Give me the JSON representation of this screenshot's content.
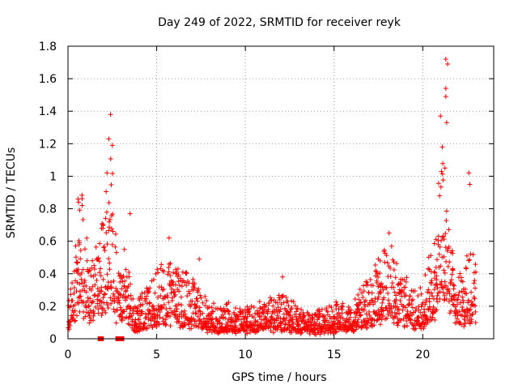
{
  "chart_data": {
    "type": "scatter",
    "title": "Day 249 of 2022, SRMTID for receiver reyk",
    "xlabel": "GPS time / hours",
    "ylabel": "SRMTID / TECUs",
    "xlim": [
      0,
      24
    ],
    "ylim": [
      0,
      1.8
    ],
    "x_ticks": [
      0,
      5,
      10,
      15,
      20
    ],
    "x_tick_labels": [
      "0",
      "5",
      "10",
      "15",
      "20"
    ],
    "y_ticks": [
      0,
      0.2,
      0.4,
      0.6,
      0.8,
      1.0,
      1.2,
      1.4,
      1.6,
      1.8
    ],
    "y_tick_labels": [
      "0",
      "0.2",
      "0.4",
      "0.6",
      "0.8",
      "1",
      "1.2",
      "1.4",
      "1.6",
      "1.8"
    ],
    "grid": true,
    "marker": "+",
    "series": [
      {
        "name": "SRMTID",
        "color": "#ff0000",
        "envelope": [
          [
            0.0,
            0.12
          ],
          [
            0.3,
            0.28
          ],
          [
            0.5,
            0.45
          ],
          [
            0.8,
            0.55
          ],
          [
            1.0,
            0.4
          ],
          [
            1.3,
            0.3
          ],
          [
            1.6,
            0.35
          ],
          [
            1.9,
            0.45
          ],
          [
            2.2,
            0.6
          ],
          [
            2.4,
            0.7
          ],
          [
            2.6,
            0.45
          ],
          [
            2.9,
            0.25
          ],
          [
            3.2,
            0.35
          ],
          [
            3.5,
            0.25
          ],
          [
            3.8,
            0.12
          ],
          [
            4.2,
            0.18
          ],
          [
            4.6,
            0.2
          ],
          [
            5.0,
            0.26
          ],
          [
            5.5,
            0.28
          ],
          [
            6.0,
            0.27
          ],
          [
            6.5,
            0.25
          ],
          [
            7.0,
            0.22
          ],
          [
            7.5,
            0.17
          ],
          [
            8.0,
            0.12
          ],
          [
            8.5,
            0.12
          ],
          [
            9.0,
            0.13
          ],
          [
            9.5,
            0.12
          ],
          [
            10.0,
            0.11
          ],
          [
            10.5,
            0.12
          ],
          [
            11.0,
            0.13
          ],
          [
            11.5,
            0.14
          ],
          [
            12.0,
            0.16
          ],
          [
            12.5,
            0.14
          ],
          [
            13.0,
            0.12
          ],
          [
            13.5,
            0.1
          ],
          [
            14.0,
            0.1
          ],
          [
            14.5,
            0.12
          ],
          [
            15.0,
            0.13
          ],
          [
            15.5,
            0.14
          ],
          [
            16.0,
            0.12
          ],
          [
            16.5,
            0.18
          ],
          [
            17.0,
            0.25
          ],
          [
            17.5,
            0.3
          ],
          [
            18.0,
            0.35
          ],
          [
            18.5,
            0.3
          ],
          [
            19.0,
            0.22
          ],
          [
            19.5,
            0.18
          ],
          [
            20.0,
            0.2
          ],
          [
            20.5,
            0.35
          ],
          [
            20.8,
            0.5
          ],
          [
            21.0,
            0.6
          ],
          [
            21.2,
            0.7
          ],
          [
            21.5,
            0.45
          ],
          [
            21.8,
            0.3
          ],
          [
            22.2,
            0.25
          ],
          [
            22.6,
            0.3
          ],
          [
            23.0,
            0.3
          ]
        ],
        "peaks": [
          [
            2.4,
            1.38
          ],
          [
            2.3,
            1.23
          ],
          [
            2.2,
            1.02
          ],
          [
            2.5,
            1.19
          ],
          [
            0.6,
            0.84
          ],
          [
            0.8,
            0.82
          ],
          [
            3.5,
            0.77
          ],
          [
            21.0,
            1.37
          ],
          [
            21.1,
            1.18
          ],
          [
            21.3,
            1.72
          ],
          [
            21.4,
            1.69
          ],
          [
            21.3,
            1.54
          ],
          [
            21.3,
            1.49
          ],
          [
            21.35,
            1.33
          ],
          [
            21.25,
            1.05
          ],
          [
            22.6,
            1.02
          ],
          [
            22.65,
            0.95
          ],
          [
            18.1,
            0.65
          ],
          [
            17.6,
            0.48
          ],
          [
            12.1,
            0.38
          ],
          [
            5.7,
            0.62
          ],
          [
            7.4,
            0.49
          ]
        ],
        "zero_markers": [
          [
            1.7,
            0.0
          ],
          [
            1.85,
            0.0
          ],
          [
            2.7,
            0.0
          ],
          [
            2.85,
            0.0
          ],
          [
            3.0,
            0.0
          ]
        ]
      }
    ]
  }
}
